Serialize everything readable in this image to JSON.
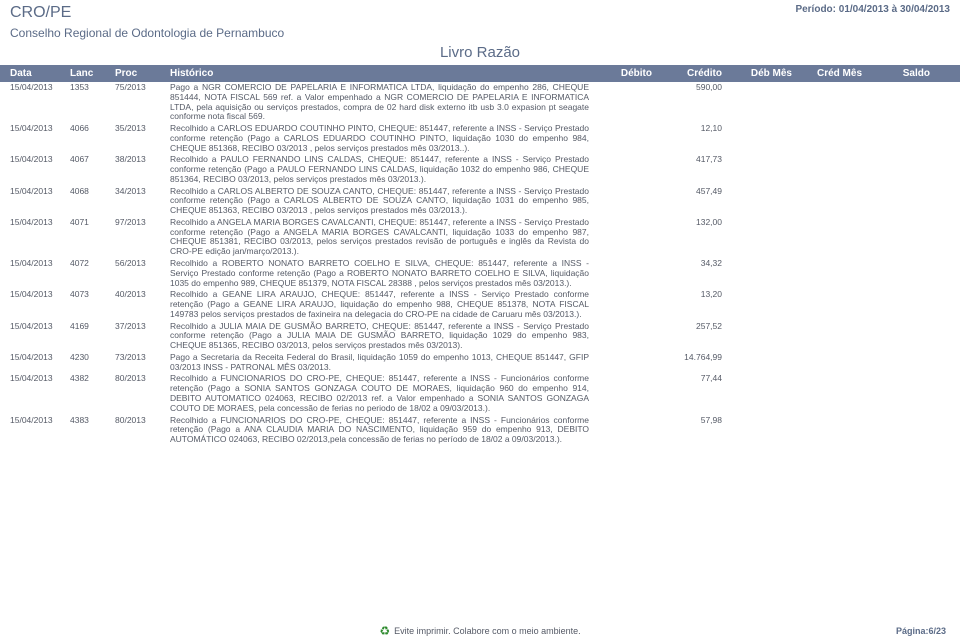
{
  "header": {
    "org_code": "CRO/PE",
    "period": "Período: 01/04/2013 à 30/04/2013",
    "org_name": "Conselho Regional de Odontologia de Pernambuco",
    "title": "Livro Razão"
  },
  "columns": {
    "data": "Data",
    "lanc": "Lanc",
    "proc": "Proc",
    "hist": "Histórico",
    "deb": "Débito",
    "cred": "Crédito",
    "debmes": "Déb Mês",
    "credmes": "Créd Mês",
    "saldo": "Saldo"
  },
  "rows": [
    {
      "data": "15/04/2013",
      "lanc": "1353",
      "proc": "75/2013",
      "hist": "Pago a NGR COMERCIO DE PAPELARIA E INFORMATICA LTDA, liquidação do empenho 286, CHEQUE 851444, NOTA FISCAL 569 ref. a Valor empenhado a NGR COMERCIO DE PAPELARIA E INFORMATICA LTDA, pela aquisição ou serviços prestados, compra de 02 hard disk externo itb usb 3.0 expasion pt seagate conforme nota fiscal 569.",
      "cred": "590,00"
    },
    {
      "data": "15/04/2013",
      "lanc": "4066",
      "proc": "35/2013",
      "hist": "Recolhido a CARLOS EDUARDO COUTINHO PINTO, CHEQUE: 851447, referente a INSS - Serviço Prestado conforme retenção (Pago a CARLOS EDUARDO COUTINHO PINTO, liquidação 1030 do empenho 984, CHEQUE 851368, RECIBO 03/2013 , pelos serviços prestados mês 03/2013..).",
      "cred": "12,10"
    },
    {
      "data": "15/04/2013",
      "lanc": "4067",
      "proc": "38/2013",
      "hist": "Recolhido a PAULO FERNANDO LINS CALDAS, CHEQUE: 851447, referente a INSS - Serviço Prestado conforme retenção (Pago a PAULO FERNANDO LINS CALDAS, liquidação 1032 do empenho 986, CHEQUE 851364, RECIBO 03/2013, pelos serviços prestados mês 03/2013.).",
      "cred": "417,73"
    },
    {
      "data": "15/04/2013",
      "lanc": "4068",
      "proc": "34/2013",
      "hist": "Recolhido a CARLOS ALBERTO DE SOUZA CANTO, CHEQUE: 851447, referente a INSS - Serviço Prestado conforme retenção (Pago a CARLOS ALBERTO DE SOUZA CANTO, liquidação 1031 do empenho 985, CHEQUE 851363, RECIBO 03/2013 , pelos serviços prestados mês 03/2013.).",
      "cred": "457,49"
    },
    {
      "data": "15/04/2013",
      "lanc": "4071",
      "proc": "97/2013",
      "hist": "Recolhido a ANGELA MARIA BORGES CAVALCANTI, CHEQUE: 851447, referente a INSS - Serviço Prestado conforme retenção (Pago a ANGELA MARIA BORGES CAVALCANTI, liquidação 1033 do empenho 987, CHEQUE 851381, RECIBO 03/2013, pelos serviços prestados revisão de português e inglês da Revista do CRO-PE edição jan/março/2013.).",
      "cred": "132,00"
    },
    {
      "data": "15/04/2013",
      "lanc": "4072",
      "proc": "56/2013",
      "hist": "Recolhido a ROBERTO NONATO BARRETO COELHO E SILVA, CHEQUE: 851447, referente a INSS - Serviço Prestado conforme retenção (Pago a ROBERTO NONATO BARRETO COELHO E SILVA, liquidação 1035 do empenho 989, CHEQUE 851379, NOTA FISCAL 28388 , pelos serviços prestados mês 03/2013.).",
      "cred": "34,32"
    },
    {
      "data": "15/04/2013",
      "lanc": "4073",
      "proc": "40/2013",
      "hist": "Recolhido a GEANE LIRA ARAUJO, CHEQUE: 851447, referente a INSS - Serviço Prestado conforme retenção (Pago a GEANE LIRA ARAUJO, liquidação do empenho 988, CHEQUE 851378, NOTA FISCAL 149783 pelos serviços prestados de faxineira na delegacia do CRO-PE na cidade de Caruaru mês 03/2013.).",
      "cred": "13,20"
    },
    {
      "data": "15/04/2013",
      "lanc": "4169",
      "proc": "37/2013",
      "hist": "Recolhido a JULIA MAIA DE GUSMÃO BARRETO, CHEQUE: 851447, referente a INSS - Serviço Prestado conforme retenção (Pago a JULIA MAIA DE GUSMÃO BARRETO, liquidação 1029 do empenho 983, CHEQUE 851365, RECIBO 03/2013, pelos serviços prestados mês 03/2013).",
      "cred": "257,52"
    },
    {
      "data": "15/04/2013",
      "lanc": "4230",
      "proc": "73/2013",
      "hist": "Pago a Secretaria da Receita Federal do Brasil, liquidação 1059 do empenho 1013, CHEQUE 851447, GFIP 03/2013 INSS - PATRONAL MÊS 03/2013.",
      "cred": "14.764,99"
    },
    {
      "data": "15/04/2013",
      "lanc": "4382",
      "proc": "80/2013",
      "hist": "Recolhido a FUNCIONARIOS DO CRO-PE, CHEQUE: 851447, referente a INSS - Funcionários conforme retenção (Pago a SONIA SANTOS GONZAGA COUTO DE MORAES, liquidação 960 do empenho 914, DEBITO AUTOMATICO 024063, RECIBO 02/2013 ref. a Valor empenhado a SONIA SANTOS GONZAGA COUTO DE MORAES, pela concessão de ferias no periodo de 18/02 a 09/03/2013.).",
      "cred": "77,44"
    },
    {
      "data": "15/04/2013",
      "lanc": "4383",
      "proc": "80/2013",
      "hist": "Recolhido a FUNCIONARIOS DO CRO-PE, CHEQUE: 851447, referente a INSS - Funcionários conforme retenção (Pago a ANA CLAUDIA MARIA DO NASCIMENTO, liquidação 959 do empenho 913, DEBITO AUTOMÁTICO 024063, RECIBO 02/2013,pela concessão de ferias no período de 18/02 a 09/03/2013.).",
      "cred": "57,98"
    }
  ],
  "footer": {
    "eco_text": "Evite imprimir. Colabore com o meio ambiente.",
    "page_label": "Página:6/23"
  },
  "style": {
    "header_bg": "#6b7a99",
    "header_fg": "#ffffff",
    "text_color": "#555a66",
    "brand_color": "#5b6b87"
  }
}
